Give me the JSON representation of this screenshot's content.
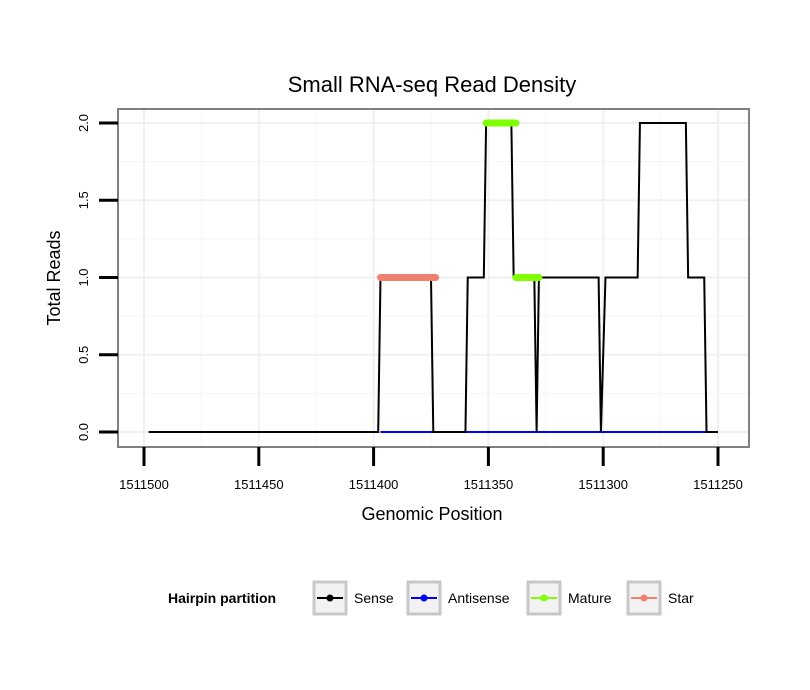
{
  "chart_data": {
    "type": "line",
    "title": "Small RNA-seq Read Density",
    "xlabel": "Genomic Position",
    "ylabel": "Total Reads",
    "x_reversed": true,
    "xlim": [
      1511500,
      1511250
    ],
    "ylim": [
      0,
      2
    ],
    "x_ticks": [
      1511500,
      1511450,
      1511400,
      1511350,
      1511300,
      1511250
    ],
    "y_ticks": [
      0.0,
      0.5,
      1.0,
      1.5,
      2.0
    ],
    "y_tick_labels": [
      "0.0",
      "0.5",
      "1.0",
      "1.5",
      "2.0"
    ],
    "grid": true,
    "legend": {
      "title": "Hairpin partition",
      "position": "bottom",
      "entries": [
        "Sense",
        "Antisense",
        "Mature",
        "Star"
      ]
    },
    "series": [
      {
        "name": "Sense",
        "color": "#000000",
        "points": [
          [
            1511498,
            0
          ],
          [
            1511398,
            0
          ],
          [
            1511397,
            1
          ],
          [
            1511375,
            1
          ],
          [
            1511374,
            0
          ],
          [
            1511360,
            0
          ],
          [
            1511359,
            1
          ],
          [
            1511352,
            1
          ],
          [
            1511351,
            2
          ],
          [
            1511340,
            2
          ],
          [
            1511339,
            1
          ],
          [
            1511330,
            1
          ],
          [
            1511329,
            0
          ],
          [
            1511328,
            1
          ],
          [
            1511302,
            1
          ],
          [
            1511301,
            0
          ],
          [
            1511299,
            1
          ],
          [
            1511285,
            1
          ],
          [
            1511284,
            2
          ],
          [
            1511264,
            2
          ],
          [
            1511263,
            1
          ],
          [
            1511256,
            1
          ],
          [
            1511255,
            0
          ],
          [
            1511250,
            0
          ]
        ]
      },
      {
        "name": "Antisense",
        "color": "#0000ff",
        "points": [
          [
            1511397,
            0
          ],
          [
            1511253,
            0
          ]
        ]
      },
      {
        "name": "Mature",
        "color": "#7fff00",
        "segments": [
          [
            [
              1511351,
              2
            ],
            [
              1511338,
              2
            ]
          ],
          [
            [
              1511338,
              1
            ],
            [
              1511328,
              1
            ]
          ]
        ]
      },
      {
        "name": "Star",
        "color": "#f08070",
        "segments": [
          [
            [
              1511397,
              1
            ],
            [
              1511373,
              1
            ]
          ]
        ]
      }
    ]
  }
}
